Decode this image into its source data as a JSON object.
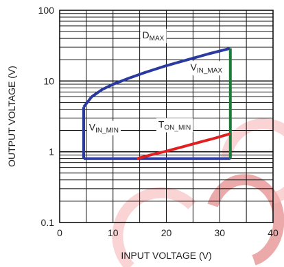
{
  "chart_data": {
    "type": "line",
    "title": "",
    "xlabel": "INPUT VOLTAGE (V)",
    "ylabel": "OUTPUT VOLTAGE (V)",
    "xlim": [
      0,
      40
    ],
    "ylim": [
      0.1,
      100
    ],
    "yscale": "log",
    "grid": true,
    "x_ticks": [
      0,
      10,
      20,
      30,
      40
    ],
    "x_tick_labels": [
      "0",
      "10",
      "20",
      "30",
      "40"
    ],
    "y_ticks": [
      0.1,
      1,
      10,
      100
    ],
    "y_tick_labels": [
      "0.1",
      "1",
      "10",
      "100"
    ],
    "series": [
      {
        "color": "#2a3a9e",
        "points": [
          [
            4.5,
            0.8
          ],
          [
            32,
            0.8
          ]
        ]
      },
      {
        "color": "#2a3a9e",
        "points": [
          [
            4.5,
            0.8
          ],
          [
            4.5,
            4.3
          ]
        ]
      },
      {
        "color": "#2a3a9e",
        "points": [
          [
            4.5,
            4.3
          ],
          [
            6,
            6.0
          ],
          [
            8,
            7.6
          ],
          [
            10,
            9.0
          ],
          [
            13,
            11.0
          ],
          [
            16,
            13.2
          ],
          [
            20,
            16.5
          ],
          [
            24,
            20.0
          ],
          [
            28,
            24.3
          ],
          [
            32,
            29.0
          ]
        ]
      },
      {
        "color": "#1a7a3a",
        "points": [
          [
            32,
            0.8
          ],
          [
            32,
            29.0
          ]
        ]
      },
      {
        "color": "#e02020",
        "points": [
          [
            14.5,
            0.8
          ],
          [
            17,
            0.9
          ],
          [
            20,
            1.02
          ],
          [
            23,
            1.17
          ],
          [
            26,
            1.35
          ],
          [
            29,
            1.55
          ],
          [
            32,
            1.8
          ]
        ]
      }
    ],
    "annotations": [
      {
        "main": "D",
        "sub": "MAX",
        "x": 15.5,
        "y": 40
      },
      {
        "main": "V",
        "sub": "IN_MAX",
        "x": 24.5,
        "y": 14
      },
      {
        "main": "V",
        "sub": "IN_MIN",
        "x": 5.5,
        "y": 2.0
      },
      {
        "main": "T",
        "sub": "ON_MIN",
        "x": 18.5,
        "y": 2.2
      }
    ]
  },
  "colors": {
    "grid": "#111111",
    "watermark": "#f7b8b8",
    "watermark_accent": "#e07070"
  }
}
